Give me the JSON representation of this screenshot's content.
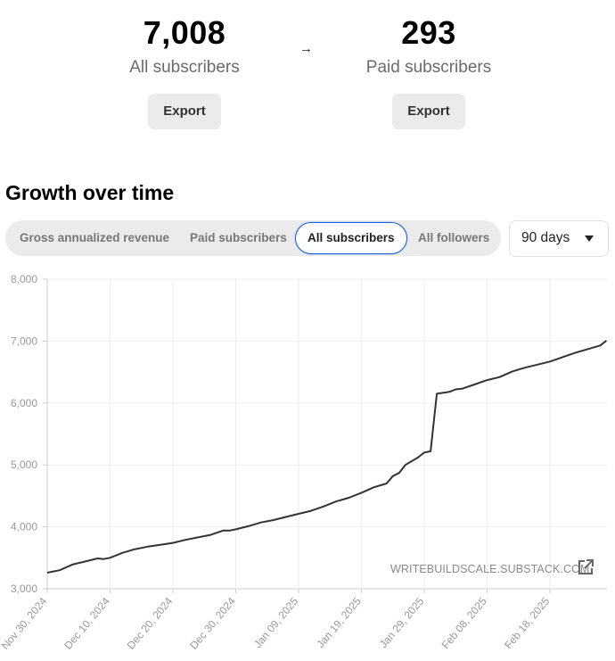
{
  "stats": [
    {
      "value": "7,008",
      "label": "All subscribers",
      "button": "Export"
    },
    {
      "value": "293",
      "label": "Paid subscribers",
      "button": "Export"
    }
  ],
  "arrow_icon": "→",
  "section_title": "Growth over time",
  "tabs": [
    {
      "label": "Gross annualized revenue",
      "active": false
    },
    {
      "label": "Paid subscribers",
      "active": false
    },
    {
      "label": "All subscribers",
      "active": true
    },
    {
      "label": "All followers",
      "active": false
    }
  ],
  "range_select": {
    "value": "90 days"
  },
  "watermark": "WRITEBUILDSCALE.SUBSTACK.COM",
  "colors": {
    "line": "#333333",
    "grid": "#eeeeee",
    "axis": "#cccccc",
    "tick_label": "#999999",
    "active_tab_border": "#1a5fd6"
  },
  "chart_data": {
    "type": "line",
    "title": "Growth over time — All subscribers",
    "xlabel": "",
    "ylabel": "",
    "ylim": [
      3000,
      8000
    ],
    "yticks": [
      "3,000",
      "4,000",
      "5,000",
      "6,000",
      "7,000",
      "8,000"
    ],
    "xticks": [
      "Nov 30, 2024",
      "Dec 10, 2024",
      "Dec 20, 2024",
      "Dec 30, 2024",
      "Jan 09, 2025",
      "Jan 19, 2025",
      "Jan 29, 2025",
      "Feb 08, 2025",
      "Feb 18, 2025"
    ],
    "grid": true,
    "legend": null,
    "series": [
      {
        "name": "All subscribers",
        "points": [
          {
            "day": 0,
            "date": "Nov 30, 2024",
            "value": 3260
          },
          {
            "day": 2,
            "value": 3300
          },
          {
            "day": 4,
            "value": 3390
          },
          {
            "day": 6,
            "value": 3440
          },
          {
            "day": 8,
            "value": 3490
          },
          {
            "day": 9,
            "value": 3480
          },
          {
            "day": 10,
            "date": "Dec 10, 2024",
            "value": 3500
          },
          {
            "day": 12,
            "value": 3580
          },
          {
            "day": 14,
            "value": 3640
          },
          {
            "day": 16,
            "value": 3680
          },
          {
            "day": 18,
            "value": 3710
          },
          {
            "day": 20,
            "date": "Dec 20, 2024",
            "value": 3740
          },
          {
            "day": 22,
            "value": 3790
          },
          {
            "day": 24,
            "value": 3830
          },
          {
            "day": 26,
            "value": 3870
          },
          {
            "day": 28,
            "value": 3940
          },
          {
            "day": 29,
            "value": 3940
          },
          {
            "day": 30,
            "date": "Dec 30, 2024",
            "value": 3960
          },
          {
            "day": 32,
            "value": 4010
          },
          {
            "day": 34,
            "value": 4070
          },
          {
            "day": 36,
            "value": 4110
          },
          {
            "day": 38,
            "value": 4160
          },
          {
            "day": 40,
            "date": "Jan 09, 2025",
            "value": 4210
          },
          {
            "day": 42,
            "value": 4260
          },
          {
            "day": 44,
            "value": 4330
          },
          {
            "day": 46,
            "value": 4410
          },
          {
            "day": 48,
            "value": 4470
          },
          {
            "day": 50,
            "date": "Jan 19, 2025",
            "value": 4550
          },
          {
            "day": 52,
            "value": 4640
          },
          {
            "day": 54,
            "value": 4700
          },
          {
            "day": 55,
            "value": 4820
          },
          {
            "day": 56,
            "value": 4870
          },
          {
            "day": 57,
            "value": 5000
          },
          {
            "day": 59,
            "value": 5120
          },
          {
            "day": 60,
            "date": "Jan 29, 2025",
            "value": 5200
          },
          {
            "day": 61,
            "value": 5220
          },
          {
            "day": 62,
            "value": 6150
          },
          {
            "day": 64,
            "value": 6180
          },
          {
            "day": 65,
            "value": 6220
          },
          {
            "day": 66,
            "value": 6230
          },
          {
            "day": 68,
            "value": 6300
          },
          {
            "day": 70,
            "date": "Feb 08, 2025",
            "value": 6370
          },
          {
            "day": 72,
            "value": 6420
          },
          {
            "day": 74,
            "value": 6510
          },
          {
            "day": 76,
            "value": 6570
          },
          {
            "day": 78,
            "value": 6620
          },
          {
            "day": 80,
            "date": "Feb 18, 2025",
            "value": 6670
          },
          {
            "day": 82,
            "value": 6740
          },
          {
            "day": 84,
            "value": 6810
          },
          {
            "day": 86,
            "value": 6870
          },
          {
            "day": 88,
            "value": 6930
          },
          {
            "day": 89,
            "value": 7008
          }
        ]
      }
    ]
  }
}
